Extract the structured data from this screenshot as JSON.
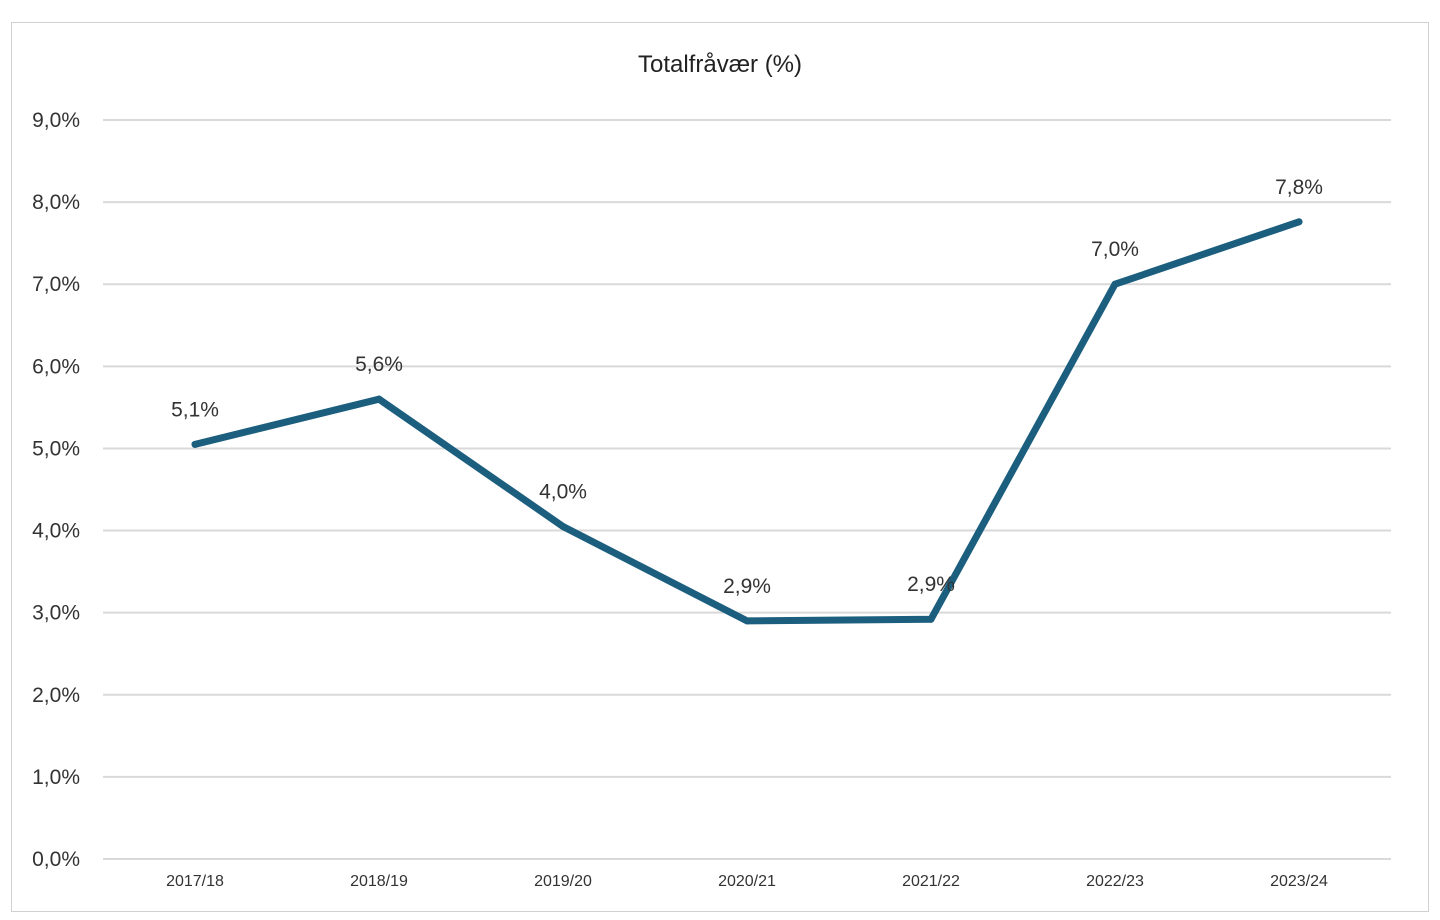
{
  "chart_data": {
    "type": "line",
    "title": "Totalfråvær (%)",
    "xlabel": "",
    "ylabel": "",
    "categories": [
      "2017/18",
      "2018/19",
      "2019/20",
      "2020/21",
      "2021/22",
      "2022/23",
      "2023/24"
    ],
    "series": [
      {
        "values": [
          5.05,
          5.6,
          4.05,
          2.9,
          2.92,
          7.0,
          7.76
        ],
        "data_labels": [
          "5,1%",
          "5,6%",
          "4,0%",
          "2,9%",
          "2,9%",
          "7,0%",
          "7,8%"
        ],
        "color": "#1b5e7e"
      }
    ],
    "ylim": [
      0,
      9
    ],
    "yticks": [
      0,
      1,
      2,
      3,
      4,
      5,
      6,
      7,
      8,
      9
    ],
    "ytick_labels": [
      "0,0%",
      "1,0%",
      "2,0%",
      "3,0%",
      "4,0%",
      "5,0%",
      "6,0%",
      "7,0%",
      "8,0%",
      "9,0%"
    ],
    "grid": true,
    "legend": "none",
    "colors": {
      "line": "#1b5e7e",
      "grid": "#d9d9d9",
      "text": "#333333"
    }
  }
}
